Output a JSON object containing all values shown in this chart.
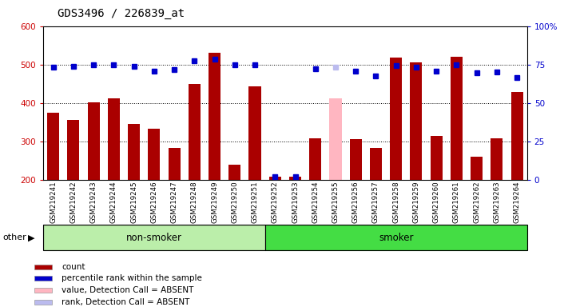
{
  "title": "GDS3496 / 226839_at",
  "samples": [
    "GSM219241",
    "GSM219242",
    "GSM219243",
    "GSM219244",
    "GSM219245",
    "GSM219246",
    "GSM219247",
    "GSM219248",
    "GSM219249",
    "GSM219250",
    "GSM219251",
    "GSM219252",
    "GSM219253",
    "GSM219254",
    "GSM219255",
    "GSM219256",
    "GSM219257",
    "GSM219258",
    "GSM219259",
    "GSM219260",
    "GSM219261",
    "GSM219262",
    "GSM219263",
    "GSM219264"
  ],
  "counts": [
    374,
    356,
    401,
    412,
    346,
    332,
    283,
    450,
    531,
    238,
    444,
    207,
    207,
    308,
    412,
    305,
    283,
    519,
    505,
    314,
    520,
    260,
    308,
    428
  ],
  "ranks": [
    494,
    496,
    499,
    499,
    496,
    483,
    487,
    509,
    513,
    499,
    499,
    207,
    207,
    488,
    493,
    483,
    471,
    497,
    492,
    482,
    500,
    479,
    481,
    465
  ],
  "absent_count_mask": [
    false,
    false,
    false,
    false,
    false,
    false,
    false,
    false,
    false,
    false,
    false,
    false,
    false,
    false,
    true,
    false,
    false,
    false,
    false,
    false,
    false,
    false,
    false,
    false
  ],
  "absent_rank_mask": [
    false,
    false,
    false,
    false,
    false,
    false,
    false,
    false,
    false,
    false,
    false,
    false,
    false,
    false,
    true,
    false,
    false,
    false,
    false,
    false,
    false,
    false,
    false,
    false
  ],
  "groups": [
    {
      "label": "non-smoker",
      "start": 0,
      "end": 11,
      "color": "#BBEEAA"
    },
    {
      "label": "smoker",
      "start": 11,
      "end": 24,
      "color": "#44DD44"
    }
  ],
  "bar_color_present": "#AA0000",
  "bar_color_absent": "#FFB6C1",
  "rank_color_present": "#0000CC",
  "rank_color_absent": "#BBBBEE",
  "ylim_left": [
    200,
    600
  ],
  "ylim_right": [
    0,
    100
  ],
  "yticks_left": [
    200,
    300,
    400,
    500,
    600
  ],
  "yticks_right": [
    0,
    25,
    50,
    75,
    100
  ],
  "grid_lines": [
    300,
    400,
    500
  ],
  "legend_items": [
    {
      "label": "count",
      "color": "#AA0000"
    },
    {
      "label": "percentile rank within the sample",
      "color": "#0000CC"
    },
    {
      "label": "value, Detection Call = ABSENT",
      "color": "#FFB6C1"
    },
    {
      "label": "rank, Detection Call = ABSENT",
      "color": "#BBBBEE"
    }
  ]
}
